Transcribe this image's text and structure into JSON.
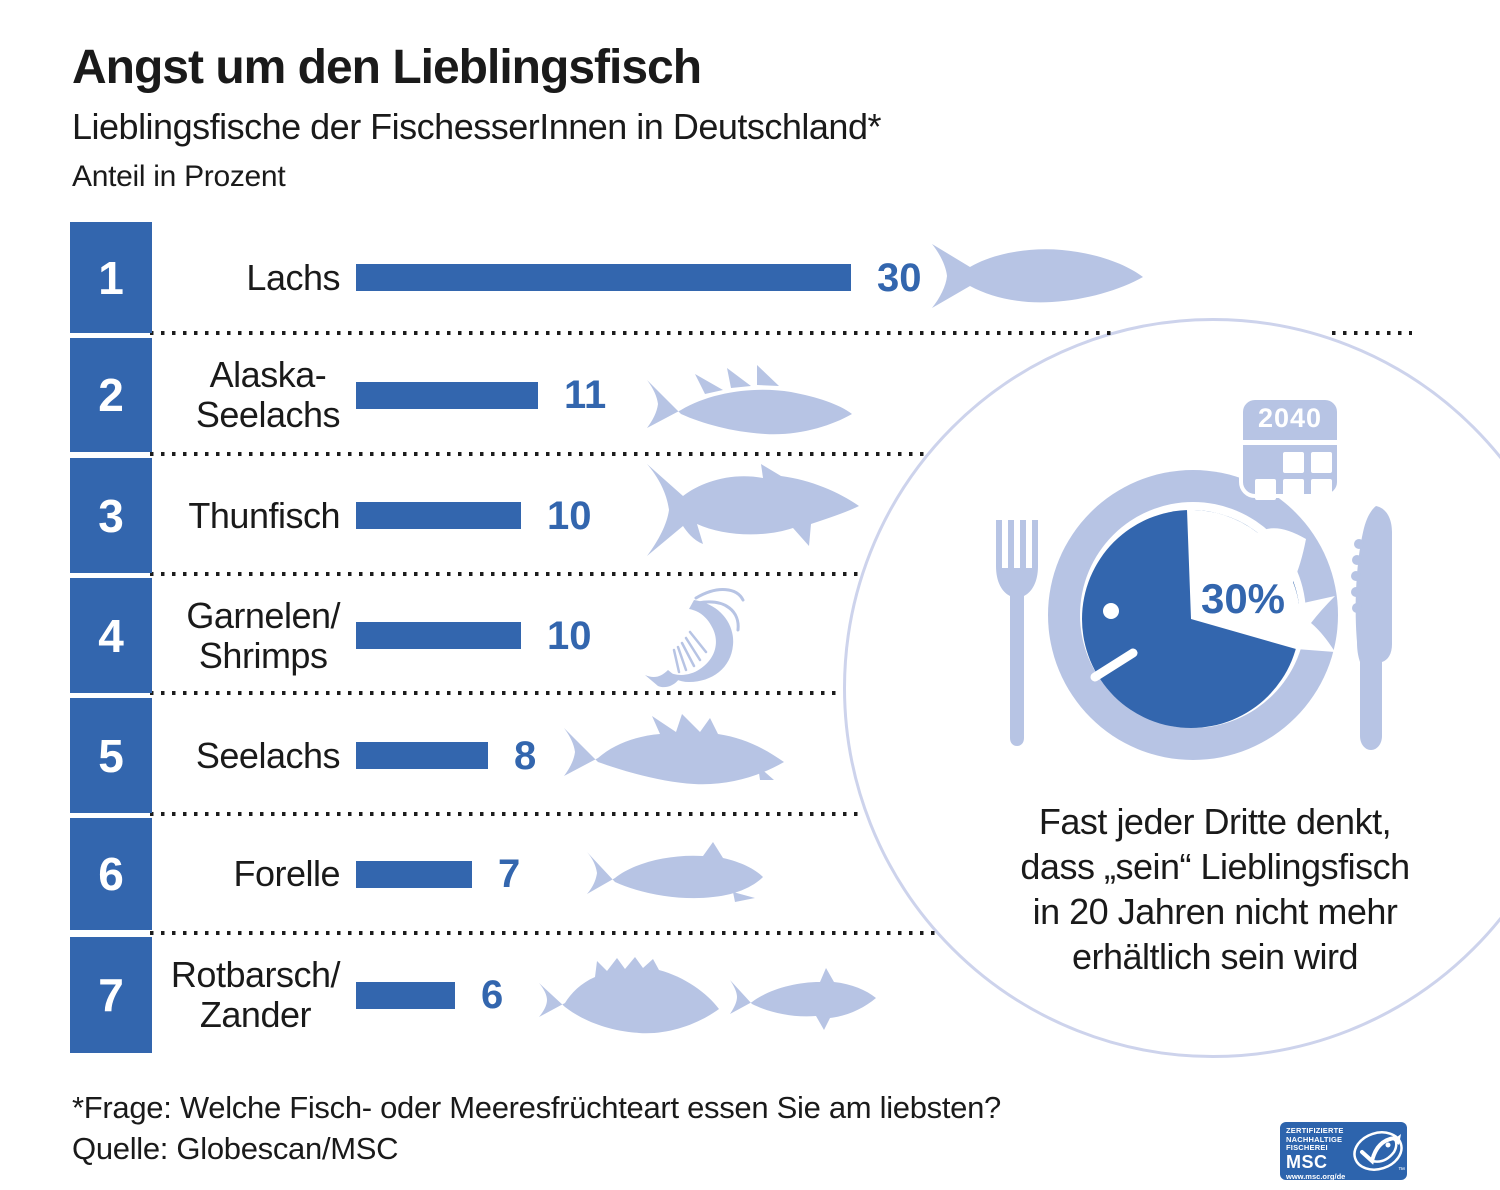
{
  "header": {
    "title": "Angst um den Lieblingsfisch",
    "subtitle": "Lieblingsfische der FischesserInnen in Deutschland*",
    "unit_label": "Anteil in Prozent"
  },
  "chart_data": {
    "type": "bar",
    "orientation": "horizontal",
    "title": "Lieblingsfische der FischesserInnen in Deutschland",
    "xlabel": "Anteil in Prozent",
    "categories": [
      "Lachs",
      "Alaska-Seelachs",
      "Thunfisch",
      "Garnelen/Shrimps",
      "Seelachs",
      "Forelle",
      "Rotbarsch/Zander"
    ],
    "values": [
      30,
      11,
      10,
      10,
      8,
      7,
      6
    ],
    "ranks": [
      1,
      2,
      3,
      4,
      5,
      6,
      7
    ],
    "unit": "percent",
    "grid": false,
    "annotation": "30% – Fast jeder Dritte denkt, dass „sein“ Lieblingsfisch in 20 Jahren nicht mehr erhältlich sein wird"
  },
  "rows": [
    {
      "rank": "1",
      "line1": "Lachs",
      "line2": "",
      "value": 30,
      "value_label": "30",
      "icon": "salmon"
    },
    {
      "rank": "2",
      "line1": "Alaska-",
      "line2": "Seelachs",
      "value": 11,
      "value_label": "11",
      "icon": "alaska-pollock"
    },
    {
      "rank": "3",
      "line1": "Thunfisch",
      "line2": "",
      "value": 10,
      "value_label": "10",
      "icon": "tuna"
    },
    {
      "rank": "4",
      "line1": "Garnelen/",
      "line2": "Shrimps",
      "value": 10,
      "value_label": "10",
      "icon": "shrimp"
    },
    {
      "rank": "5",
      "line1": "Seelachs",
      "line2": "",
      "value": 8,
      "value_label": "8",
      "icon": "saithe"
    },
    {
      "rank": "6",
      "line1": "Forelle",
      "line2": "",
      "value": 7,
      "value_label": "7",
      "icon": "trout"
    },
    {
      "rank": "7",
      "line1": "Rotbarsch/",
      "line2": "Zander",
      "value": 6,
      "value_label": "6",
      "icon": "redfish-zander"
    }
  ],
  "highlight": {
    "year": "2040",
    "percent": "30%",
    "caption_line1": "Fast jeder Dritte denkt,",
    "caption_line2": "dass „sein“ Lieblingsfisch",
    "caption_line3": "in 20 Jahren nicht mehr",
    "caption_line4": "erhältlich sein wird"
  },
  "footer": {
    "question": "*Frage: Welche Fisch- oder Meeresfrüchteart essen Sie am liebsten?",
    "source": "Quelle: Globescan/MSC"
  },
  "msc_logo": {
    "line1": "ZERTIFIZIERTE",
    "line2": "NACHHALTIGE",
    "line3": "FISCHEREI",
    "name": "MSC",
    "url": "www.msc.org/de",
    "tm": "™"
  },
  "colors": {
    "primary_blue": "#3366AE",
    "light_blue": "#B7C4E4",
    "circle_outline": "#CDD3EC",
    "msc_blue": "#2D64AD",
    "text": "#1A1A1A"
  }
}
